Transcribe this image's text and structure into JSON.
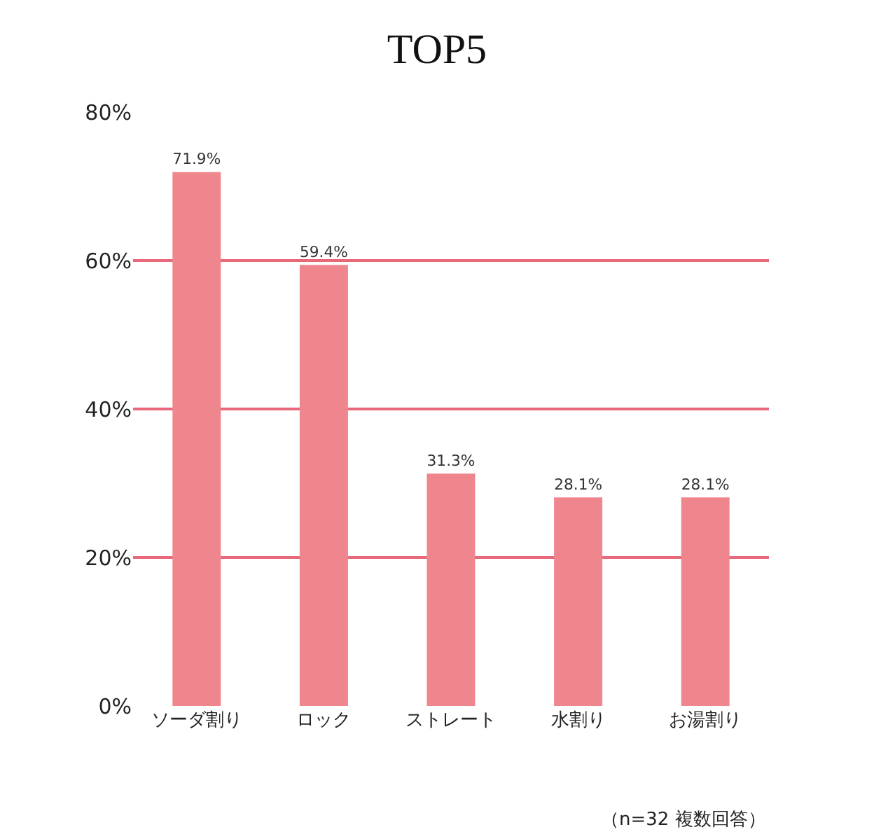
{
  "chart_data": {
    "type": "bar",
    "title": "TOP5",
    "categories": [
      "ソーダ割り",
      "ロック",
      "ストレート",
      "水割り",
      "お湯割り"
    ],
    "values": [
      71.9,
      59.4,
      31.3,
      28.1,
      28.1
    ],
    "value_labels": [
      "71.9%",
      "59.4%",
      "31.3%",
      "28.1%",
      "28.1%"
    ],
    "color": "#ef868e",
    "ylim": [
      0,
      80
    ],
    "yticks": [
      {
        "value": 0,
        "label": "0%"
      },
      {
        "value": 20,
        "label": "20%"
      },
      {
        "value": 40,
        "label": "40%"
      },
      {
        "value": 60,
        "label": "60%"
      },
      {
        "value": 80,
        "label": "80%"
      }
    ],
    "grid": "y",
    "annotations": [
      "（n=32 複数回答）"
    ]
  }
}
